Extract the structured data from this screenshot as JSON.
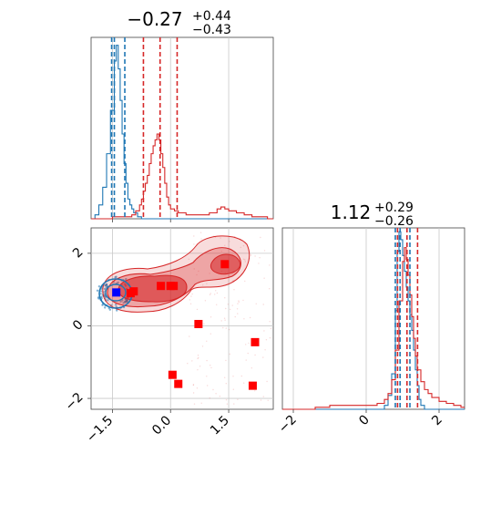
{
  "chart_data": [
    {
      "type": "histogram",
      "panel": "top-left",
      "title_main": "−0.27",
      "title_sup": "+0.44",
      "title_sub": "−0.43",
      "xlim": [
        -2.05,
        2.65
      ],
      "grid": true,
      "series": [
        {
          "color": "#1f77b4",
          "bins": [
            [
              -2.05,
              0.0
            ],
            [
              -1.95,
              0.02
            ],
            [
              -1.85,
              0.07
            ],
            [
              -1.75,
              0.16
            ],
            [
              -1.65,
              0.33
            ],
            [
              -1.55,
              0.55
            ],
            [
              -1.45,
              0.8
            ],
            [
              -1.4,
              0.88
            ],
            [
              -1.35,
              0.76
            ],
            [
              -1.3,
              0.6
            ],
            [
              -1.25,
              0.43
            ],
            [
              -1.2,
              0.28
            ],
            [
              -1.15,
              0.18
            ],
            [
              -1.1,
              0.1
            ],
            [
              -1.05,
              0.07
            ],
            [
              -1.0,
              0.05
            ],
            [
              -0.95,
              0.03
            ],
            [
              -0.85,
              0.01
            ],
            [
              -0.75,
              0.0
            ]
          ],
          "quantile_lines": [
            -1.52,
            -1.45,
            -1.18
          ]
        },
        {
          "color": "#d62728",
          "bins": [
            [
              -2.05,
              0.0
            ],
            [
              -1.5,
              0.01
            ],
            [
              -1.0,
              0.02
            ],
            [
              -0.9,
              0.04
            ],
            [
              -0.8,
              0.07
            ],
            [
              -0.75,
              0.1
            ],
            [
              -0.7,
              0.14
            ],
            [
              -0.65,
              0.18
            ],
            [
              -0.6,
              0.22
            ],
            [
              -0.55,
              0.28
            ],
            [
              -0.5,
              0.33
            ],
            [
              -0.45,
              0.37
            ],
            [
              -0.4,
              0.4
            ],
            [
              -0.35,
              0.43
            ],
            [
              -0.3,
              0.4
            ],
            [
              -0.25,
              0.33
            ],
            [
              -0.2,
              0.26
            ],
            [
              -0.15,
              0.18
            ],
            [
              -0.1,
              0.11
            ],
            [
              -0.05,
              0.07
            ],
            [
              0.0,
              0.05
            ],
            [
              0.1,
              0.04
            ],
            [
              0.2,
              0.03
            ],
            [
              0.4,
              0.02
            ],
            [
              0.8,
              0.02
            ],
            [
              1.0,
              0.03
            ],
            [
              1.2,
              0.05
            ],
            [
              1.3,
              0.06
            ],
            [
              1.4,
              0.05
            ],
            [
              1.5,
              0.04
            ],
            [
              1.7,
              0.03
            ],
            [
              1.9,
              0.02
            ],
            [
              2.1,
              0.01
            ],
            [
              2.3,
              0.01
            ],
            [
              2.5,
              0.0
            ]
          ],
          "quantile_lines": [
            -0.7,
            -0.27,
            0.17
          ]
        }
      ]
    },
    {
      "type": "scatter-contour",
      "panel": "bottom-left",
      "xlim": [
        -2.05,
        2.65
      ],
      "ylim": [
        -2.3,
        2.7
      ],
      "x_ticks": [
        "−1.5",
        "0.0",
        "1.5"
      ],
      "y_ticks": [
        "−2",
        "0",
        "2"
      ],
      "x_tick_values": [
        -1.5,
        0.0,
        1.5
      ],
      "y_tick_values": [
        -2,
        0,
        2
      ],
      "grid": true,
      "red_markers": [
        [
          -0.95,
          0.95
        ],
        [
          -1.03,
          0.9
        ],
        [
          -0.25,
          1.1
        ],
        [
          0.0,
          1.1
        ],
        [
          0.08,
          1.1
        ],
        [
          1.4,
          1.7
        ],
        [
          0.72,
          0.05
        ],
        [
          2.18,
          -0.45
        ],
        [
          0.05,
          -1.35
        ],
        [
          0.2,
          -1.6
        ],
        [
          2.12,
          -1.65
        ]
      ],
      "blue_markers": [
        [
          -1.4,
          0.92
        ]
      ]
    },
    {
      "type": "histogram",
      "panel": "bottom-right",
      "title_main": "1.12",
      "title_sup": "+0.29",
      "title_sub": "−0.26",
      "xlim": [
        -2.3,
        2.7
      ],
      "x_ticks": [
        "−2",
        "0",
        "2"
      ],
      "x_tick_values": [
        -2,
        0,
        2
      ],
      "grid": true,
      "series": [
        {
          "color": "#1f77b4",
          "bins": [
            [
              -2.3,
              0.0
            ],
            [
              0.4,
              0.0
            ],
            [
              0.5,
              0.02
            ],
            [
              0.6,
              0.07
            ],
            [
              0.7,
              0.18
            ],
            [
              0.8,
              0.5
            ],
            [
              0.85,
              0.8
            ],
            [
              0.9,
              0.9
            ],
            [
              0.95,
              0.86
            ],
            [
              1.0,
              0.78
            ],
            [
              1.05,
              0.7
            ],
            [
              1.1,
              0.62
            ],
            [
              1.15,
              0.55
            ],
            [
              1.2,
              0.48
            ],
            [
              1.25,
              0.4
            ],
            [
              1.3,
              0.3
            ],
            [
              1.35,
              0.2
            ],
            [
              1.4,
              0.12
            ],
            [
              1.45,
              0.05
            ],
            [
              1.5,
              0.02
            ],
            [
              1.6,
              0.0
            ]
          ],
          "quantile_lines": [
            0.8,
            0.93,
            1.2
          ]
        },
        {
          "color": "#d62728",
          "bins": [
            [
              -2.3,
              0.0
            ],
            [
              -1.4,
              0.01
            ],
            [
              -1.0,
              0.02
            ],
            [
              0.0,
              0.02
            ],
            [
              0.3,
              0.03
            ],
            [
              0.5,
              0.05
            ],
            [
              0.6,
              0.08
            ],
            [
              0.7,
              0.15
            ],
            [
              0.8,
              0.3
            ],
            [
              0.9,
              0.55
            ],
            [
              1.0,
              0.75
            ],
            [
              1.05,
              0.82
            ],
            [
              1.1,
              0.76
            ],
            [
              1.15,
              0.68
            ],
            [
              1.2,
              0.58
            ],
            [
              1.25,
              0.47
            ],
            [
              1.3,
              0.36
            ],
            [
              1.35,
              0.27
            ],
            [
              1.4,
              0.2
            ],
            [
              1.5,
              0.14
            ],
            [
              1.6,
              0.1
            ],
            [
              1.7,
              0.08
            ],
            [
              1.8,
              0.06
            ],
            [
              2.0,
              0.04
            ],
            [
              2.2,
              0.03
            ],
            [
              2.4,
              0.02
            ],
            [
              2.6,
              0.01
            ]
          ],
          "quantile_lines": [
            0.86,
            1.12,
            1.41
          ]
        }
      ]
    }
  ]
}
